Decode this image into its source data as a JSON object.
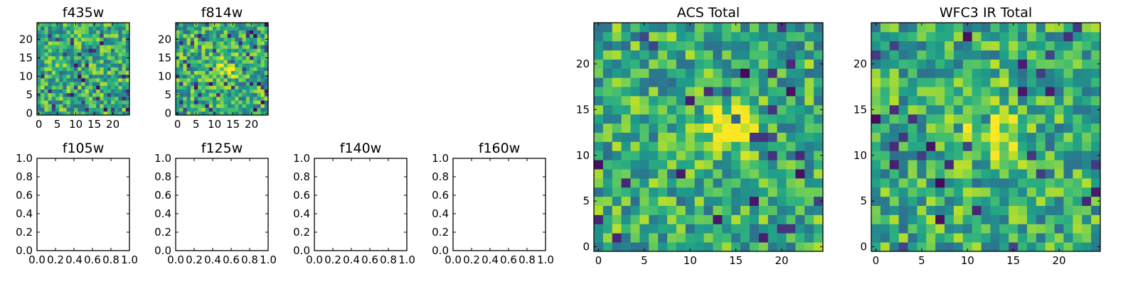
{
  "chart_data": [
    {
      "type": "heatmap",
      "title": "f435w",
      "grid_size": 25,
      "xlim": [
        -0.5,
        24.5
      ],
      "ylim": [
        -0.5,
        24.5
      ],
      "xticks": [
        0,
        5,
        10,
        15,
        20
      ],
      "yticks": [
        0,
        5,
        10,
        15,
        20
      ],
      "colormap": "viridis",
      "seed": 435,
      "bright_blob": null
    },
    {
      "type": "heatmap",
      "title": "f814w",
      "grid_size": 25,
      "xlim": [
        -0.5,
        24.5
      ],
      "ylim": [
        -0.5,
        24.5
      ],
      "xticks": [
        0,
        5,
        10,
        15,
        20
      ],
      "yticks": [
        0,
        5,
        10,
        15,
        20
      ],
      "colormap": "viridis",
      "seed": 814,
      "bright_blob": [
        13,
        12
      ]
    },
    {
      "type": "empty",
      "title": "f105w",
      "xlim": [
        0,
        1
      ],
      "ylim": [
        0,
        1
      ],
      "xticks": [
        "0.0",
        "0.2",
        "0.4",
        "0.6",
        "0.8",
        "1.0"
      ],
      "yticks": [
        "0.0",
        "0.2",
        "0.4",
        "0.6",
        "0.8",
        "1.0"
      ]
    },
    {
      "type": "empty",
      "title": "f125w",
      "xlim": [
        0,
        1
      ],
      "ylim": [
        0,
        1
      ],
      "xticks": [
        "0.0",
        "0.2",
        "0.4",
        "0.6",
        "0.8",
        "1.0"
      ],
      "yticks": [
        "0.0",
        "0.2",
        "0.4",
        "0.6",
        "0.8",
        "1.0"
      ]
    },
    {
      "type": "empty",
      "title": "f140w",
      "xlim": [
        0,
        1
      ],
      "ylim": [
        0,
        1
      ],
      "xticks": [
        "0.0",
        "0.2",
        "0.4",
        "0.6",
        "0.8",
        "1.0"
      ],
      "yticks": [
        "0.0",
        "0.2",
        "0.4",
        "0.6",
        "0.8",
        "1.0"
      ]
    },
    {
      "type": "empty",
      "title": "f160w",
      "xlim": [
        0,
        1
      ],
      "ylim": [
        0,
        1
      ],
      "xticks": [
        "0.0",
        "0.2",
        "0.4",
        "0.6",
        "0.8",
        "1.0"
      ],
      "yticks": [
        "0.0",
        "0.2",
        "0.4",
        "0.6",
        "0.8",
        "1.0"
      ]
    },
    {
      "type": "heatmap",
      "title": "ACS Total",
      "grid_size": 25,
      "xlim": [
        -0.5,
        24.5
      ],
      "ylim": [
        -0.5,
        24.5
      ],
      "xticks": [
        0,
        5,
        10,
        15,
        20
      ],
      "yticks": [
        0,
        5,
        10,
        15,
        20
      ],
      "colormap": "viridis",
      "seed": 2001,
      "bright_blob": [
        14,
        13
      ]
    },
    {
      "type": "heatmap",
      "title": "WFC3 IR Total",
      "grid_size": 25,
      "xlim": [
        -0.5,
        24.5
      ],
      "ylim": [
        -0.5,
        24.5
      ],
      "xticks": [
        0,
        5,
        10,
        15,
        20
      ],
      "yticks": [
        0,
        5,
        10,
        15,
        20
      ],
      "colormap": "viridis",
      "seed": 3003,
      "bright_blob": [
        13,
        13
      ]
    }
  ]
}
